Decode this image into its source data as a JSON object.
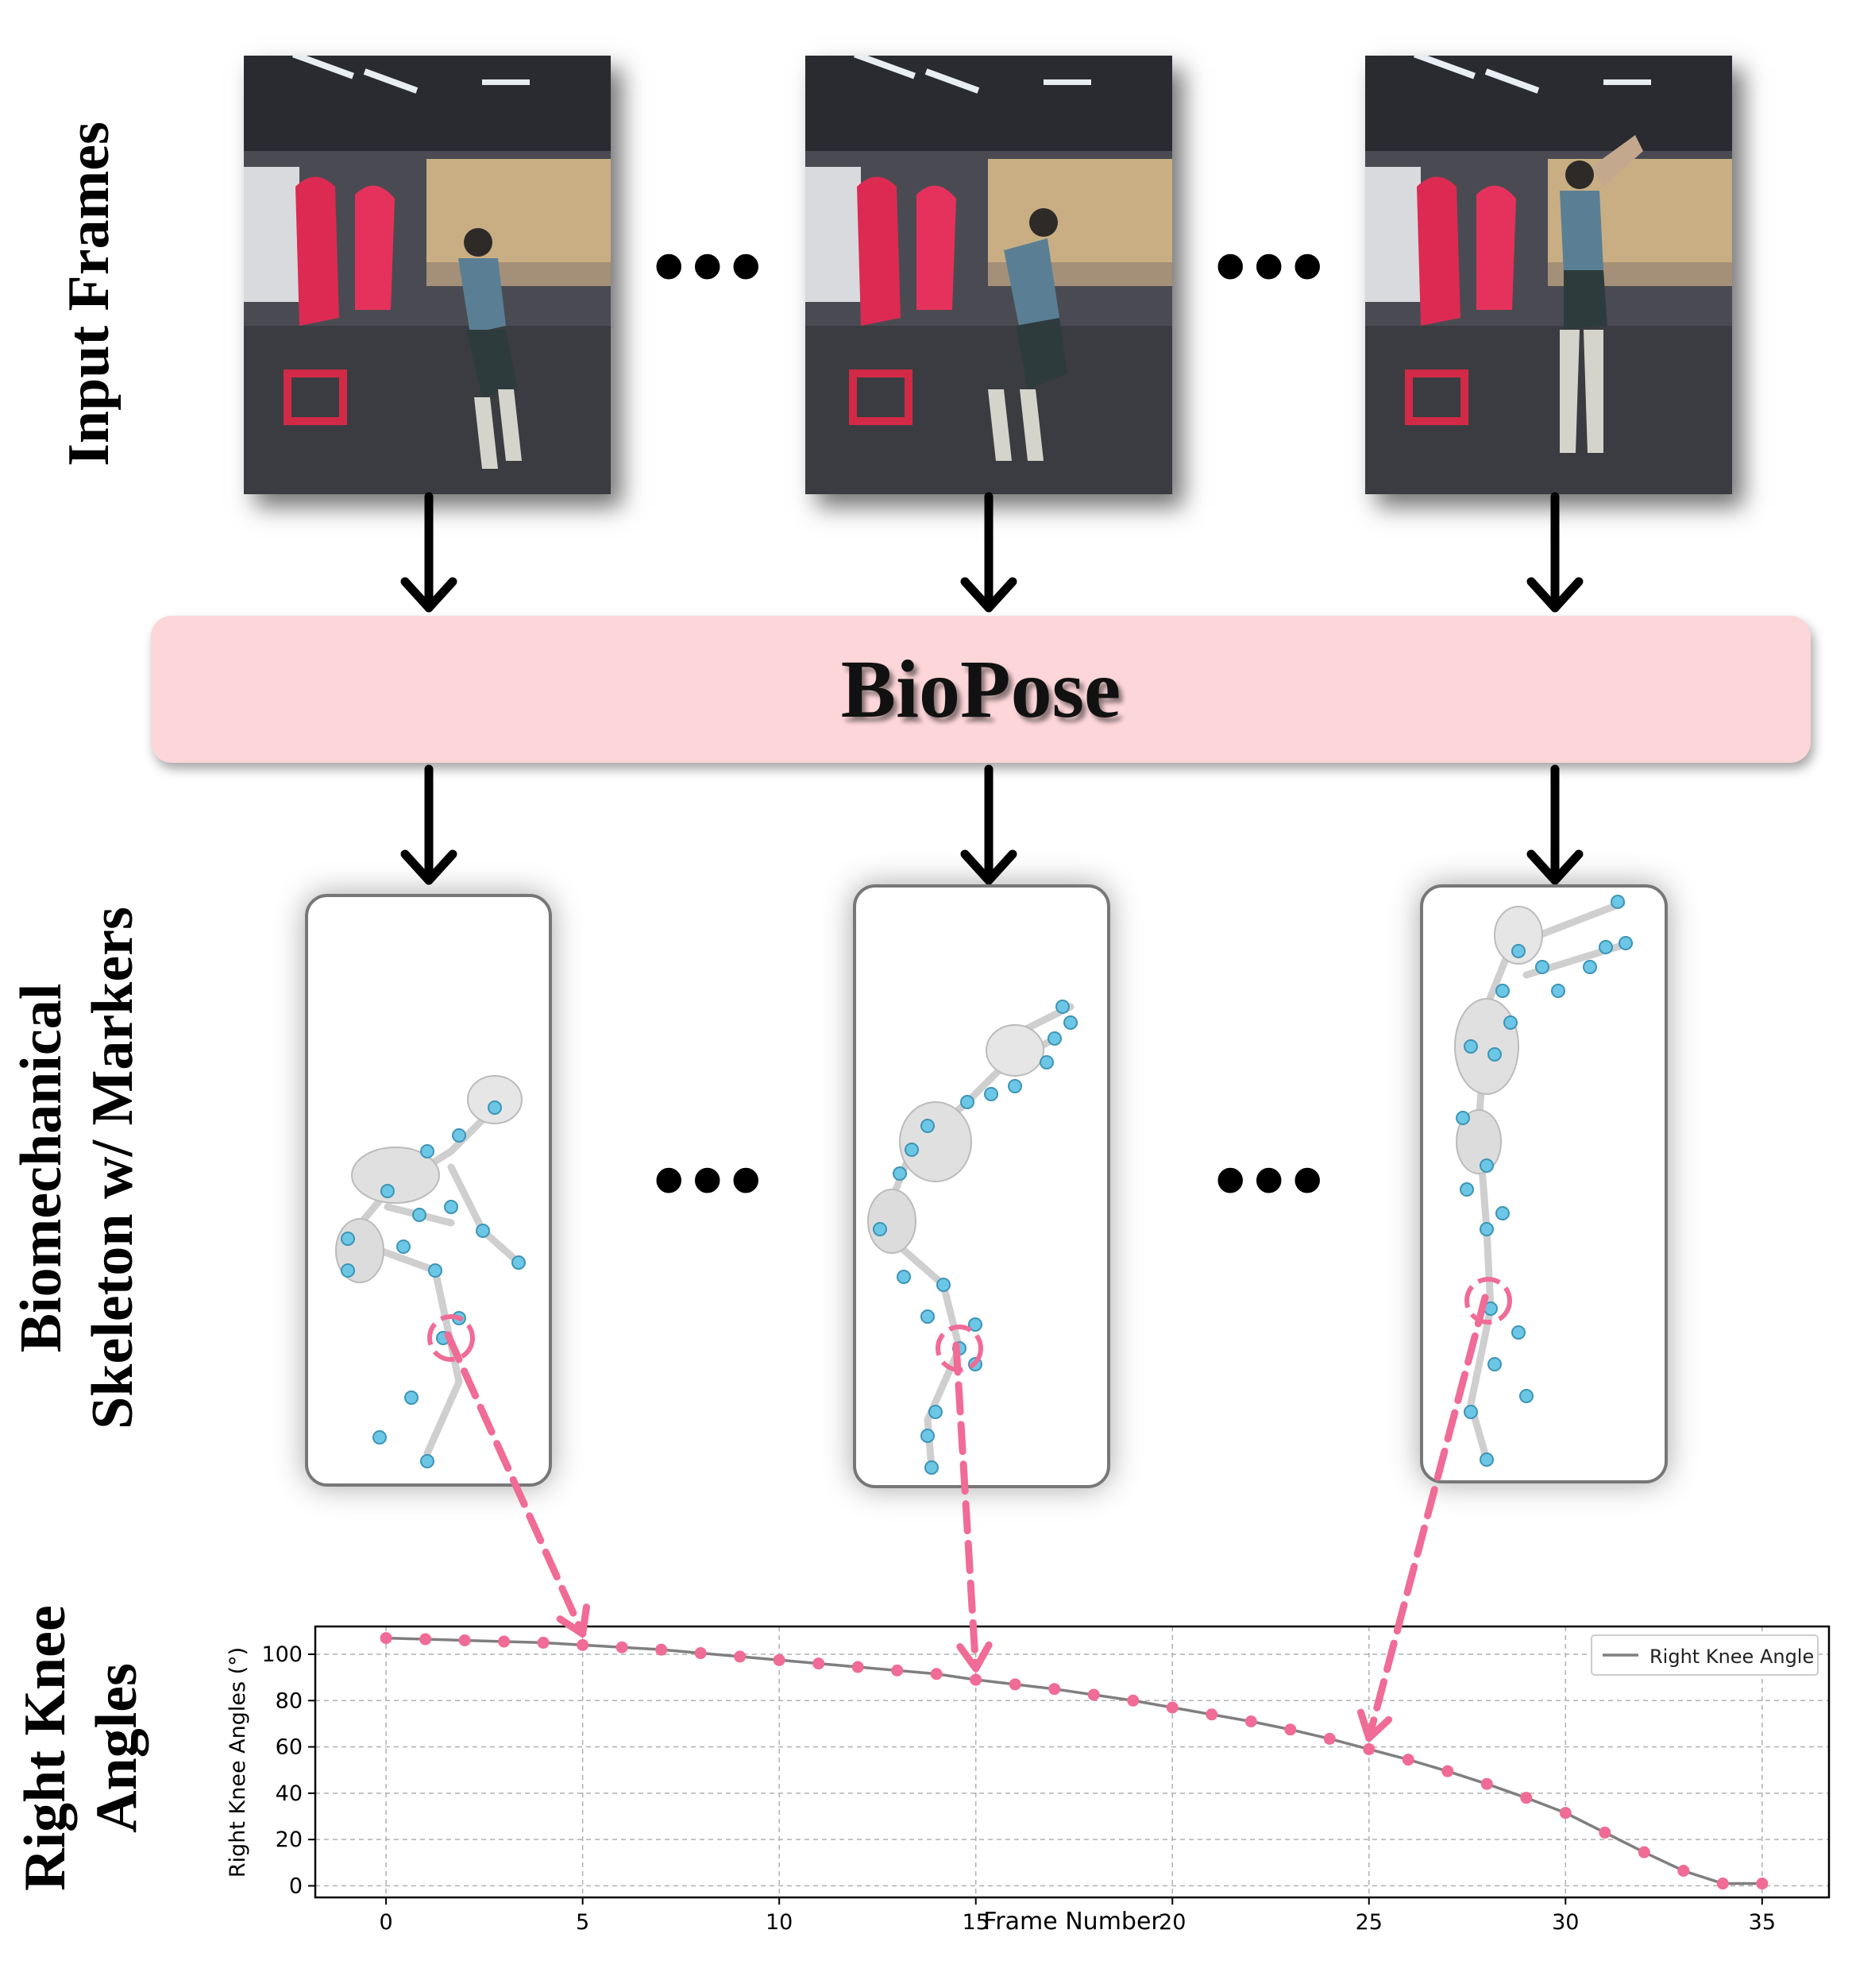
{
  "labels": {
    "input_frames": "Input Frames",
    "skeleton_line1": "Biomechanical",
    "skeleton_line2": "Skeleton w/ Markers",
    "knee_line1": "Right Knee",
    "knee_line2": "Angles"
  },
  "ellipsis": "•••",
  "model_name": "BioPose",
  "colors": {
    "accent_pink": "#f06b96",
    "box_pink": "#fdd6d9",
    "marker_blue": "#6cc7e6",
    "line_gray": "#7f7f7f"
  },
  "chart_data": {
    "type": "line",
    "title": "",
    "xlabel": "Frame Number",
    "ylabel": "Right Knee Angles (°)",
    "legend": "Right Knee Angle",
    "legend_position": "top-right",
    "grid": true,
    "xlim": [
      -1.8,
      36.7
    ],
    "ylim": [
      -5,
      112
    ],
    "xticks": [
      0,
      5,
      10,
      15,
      20,
      25,
      30,
      35
    ],
    "yticks": [
      0,
      20,
      40,
      60,
      80,
      100
    ],
    "x": [
      0,
      1,
      2,
      3,
      4,
      5,
      6,
      7,
      8,
      9,
      10,
      11,
      12,
      13,
      14,
      15,
      16,
      17,
      18,
      19,
      20,
      21,
      22,
      23,
      24,
      25,
      26,
      27,
      28,
      29,
      30,
      31,
      32,
      33,
      34,
      35
    ],
    "values": [
      107,
      106.5,
      106,
      105.5,
      105,
      104,
      103,
      102,
      100.5,
      99,
      97.5,
      96,
      94.5,
      93,
      91.5,
      89,
      87,
      85,
      82.5,
      80,
      77,
      74,
      71,
      67.5,
      63.5,
      59,
      54.5,
      49.5,
      44,
      38,
      31.5,
      23,
      14.5,
      6.5,
      1,
      1
    ]
  }
}
